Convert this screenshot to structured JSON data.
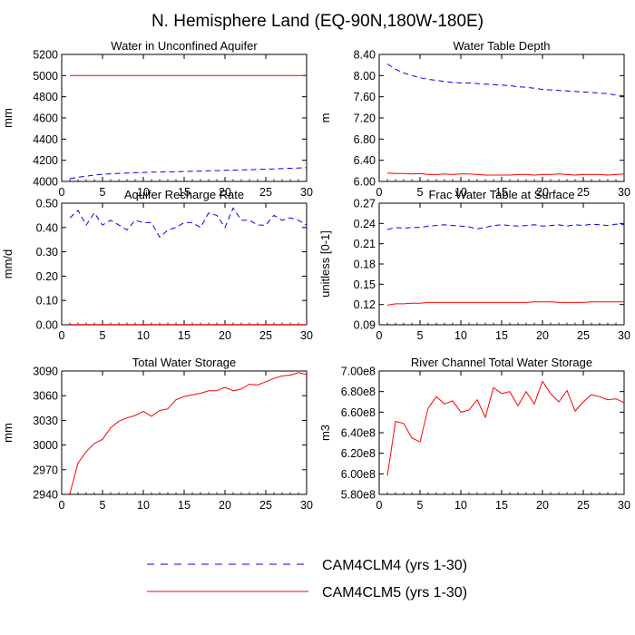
{
  "figure_title": "N. Hemisphere Land (EQ-90N,180W-180E)",
  "colors": {
    "cam4clm4": "#0000ff",
    "cam4clm5": "#ff0000",
    "axis": "#000000"
  },
  "legend": [
    {
      "label": "CAM4CLM4 (yrs 1-30)",
      "color": "#0000ff",
      "dash": "dashed"
    },
    {
      "label": "CAM4CLM5 (yrs 1-30)",
      "color": "#ff0000",
      "dash": "solid"
    }
  ],
  "chart_data": [
    {
      "type": "line",
      "title": "Water in Unconfined Aquifer",
      "xlabel": "",
      "ylabel": "mm",
      "xlim": [
        0,
        30
      ],
      "ylim": [
        4000,
        5200
      ],
      "xticks": [
        "0",
        "5",
        "10",
        "15",
        "20",
        "25",
        "30"
      ],
      "yticks": [
        "4000",
        "4200",
        "4400",
        "4600",
        "4800",
        "5000",
        "5200"
      ],
      "series": [
        {
          "key": "cam4clm4",
          "x": [
            1,
            2,
            3,
            4,
            5,
            6,
            7,
            8,
            9,
            10,
            11,
            12,
            13,
            14,
            15,
            16,
            17,
            18,
            19,
            20,
            21,
            22,
            23,
            24,
            25,
            26,
            27,
            28,
            29,
            30
          ],
          "values": [
            4025,
            4040,
            4050,
            4060,
            4068,
            4072,
            4076,
            4080,
            4083,
            4085,
            4087,
            4088,
            4090,
            4092,
            4094,
            4096,
            4098,
            4100,
            4102,
            4105,
            4107,
            4109,
            4111,
            4113,
            4116,
            4118,
            4121,
            4124,
            4127,
            4130
          ]
        },
        {
          "key": "cam4clm5",
          "x": [
            1,
            2,
            3,
            4,
            5,
            6,
            7,
            8,
            9,
            10,
            11,
            12,
            13,
            14,
            15,
            16,
            17,
            18,
            19,
            20,
            21,
            22,
            23,
            24,
            25,
            26,
            27,
            28,
            29,
            30
          ],
          "values": [
            5000,
            5000,
            5000,
            5000,
            5000,
            5000,
            5000,
            5000,
            5000,
            5000,
            5000,
            5000,
            5000,
            5000,
            5000,
            5000,
            5000,
            5000,
            5000,
            5000,
            5000,
            5000,
            5000,
            5000,
            5000,
            5000,
            5000,
            5000,
            5000,
            5000
          ]
        }
      ]
    },
    {
      "type": "line",
      "title": "Water Table Depth",
      "xlabel": "",
      "ylabel": "m",
      "xlim": [
        0,
        30
      ],
      "ylim": [
        6.0,
        8.4
      ],
      "xticks": [
        "0",
        "5",
        "10",
        "15",
        "20",
        "25",
        "30"
      ],
      "yticks": [
        "6.00",
        "6.40",
        "6.80",
        "7.20",
        "7.60",
        "8.00",
        "8.40"
      ],
      "series": [
        {
          "key": "cam4clm4",
          "x": [
            1,
            2,
            3,
            4,
            5,
            6,
            7,
            8,
            9,
            10,
            11,
            12,
            13,
            14,
            15,
            16,
            17,
            18,
            19,
            20,
            21,
            22,
            23,
            24,
            25,
            26,
            27,
            28,
            29,
            30
          ],
          "values": [
            8.22,
            8.12,
            8.05,
            8.0,
            7.96,
            7.93,
            7.91,
            7.89,
            7.87,
            7.86,
            7.86,
            7.85,
            7.84,
            7.83,
            7.82,
            7.81,
            7.79,
            7.78,
            7.76,
            7.74,
            7.73,
            7.72,
            7.71,
            7.7,
            7.69,
            7.68,
            7.67,
            7.66,
            7.63,
            7.62
          ]
        },
        {
          "key": "cam4clm5",
          "x": [
            1,
            2,
            3,
            4,
            5,
            6,
            7,
            8,
            9,
            10,
            11,
            12,
            13,
            14,
            15,
            16,
            17,
            18,
            19,
            20,
            21,
            22,
            23,
            24,
            25,
            26,
            27,
            28,
            29,
            30
          ],
          "values": [
            6.16,
            6.15,
            6.15,
            6.14,
            6.15,
            6.13,
            6.13,
            6.14,
            6.13,
            6.14,
            6.14,
            6.13,
            6.12,
            6.12,
            6.12,
            6.12,
            6.13,
            6.13,
            6.12,
            6.13,
            6.13,
            6.14,
            6.13,
            6.12,
            6.13,
            6.13,
            6.13,
            6.12,
            6.13,
            6.14
          ]
        }
      ]
    },
    {
      "type": "line",
      "title": "Aquifer Recharge Rate",
      "xlabel": "",
      "ylabel": "mm/d",
      "xlim": [
        0,
        30
      ],
      "ylim": [
        0.0,
        0.5
      ],
      "xticks": [
        "0",
        "5",
        "10",
        "15",
        "20",
        "25",
        "30"
      ],
      "yticks": [
        "0.00",
        "0.10",
        "0.20",
        "0.30",
        "0.40",
        "0.50"
      ],
      "series": [
        {
          "key": "cam4clm4",
          "x": [
            1,
            2,
            3,
            4,
            5,
            6,
            7,
            8,
            9,
            10,
            11,
            12,
            13,
            14,
            15,
            16,
            17,
            18,
            19,
            20,
            21,
            22,
            23,
            24,
            25,
            26,
            27,
            28,
            29,
            30
          ],
          "values": [
            0.44,
            0.47,
            0.41,
            0.46,
            0.41,
            0.43,
            0.41,
            0.39,
            0.43,
            0.42,
            0.42,
            0.36,
            0.39,
            0.4,
            0.42,
            0.42,
            0.4,
            0.46,
            0.45,
            0.4,
            0.48,
            0.43,
            0.43,
            0.41,
            0.41,
            0.45,
            0.43,
            0.44,
            0.43,
            0.41
          ]
        },
        {
          "key": "cam4clm5",
          "x": [
            1,
            2,
            3,
            4,
            5,
            6,
            7,
            8,
            9,
            10,
            11,
            12,
            13,
            14,
            15,
            16,
            17,
            18,
            19,
            20,
            21,
            22,
            23,
            24,
            25,
            26,
            27,
            28,
            29,
            30
          ],
          "values": [
            0.001,
            0.001,
            0.001,
            0.001,
            0.001,
            0.001,
            0.001,
            0.001,
            0.001,
            0.001,
            0.001,
            0.001,
            0.001,
            0.001,
            0.001,
            0.001,
            0.001,
            0.001,
            0.001,
            0.001,
            0.001,
            0.001,
            0.001,
            0.001,
            0.001,
            0.001,
            0.001,
            0.001,
            0.001,
            0.001
          ]
        }
      ]
    },
    {
      "type": "line",
      "title": "Frac Water Table at Surface",
      "xlabel": "",
      "ylabel": "unitless [0-1]",
      "xlim": [
        0,
        30
      ],
      "ylim": [
        0.09,
        0.27
      ],
      "xticks": [
        "0",
        "5",
        "10",
        "15",
        "20",
        "25",
        "30"
      ],
      "yticks": [
        "0.09",
        "0.12",
        "0.15",
        "0.18",
        "0.21",
        "0.24",
        "0.27"
      ],
      "series": [
        {
          "key": "cam4clm4",
          "x": [
            1,
            2,
            3,
            4,
            5,
            6,
            7,
            8,
            9,
            10,
            11,
            12,
            13,
            14,
            15,
            16,
            17,
            18,
            19,
            20,
            21,
            22,
            23,
            24,
            25,
            26,
            27,
            28,
            29,
            30
          ],
          "values": [
            0.231,
            0.234,
            0.233,
            0.234,
            0.234,
            0.236,
            0.237,
            0.238,
            0.237,
            0.236,
            0.235,
            0.232,
            0.234,
            0.237,
            0.238,
            0.237,
            0.236,
            0.237,
            0.238,
            0.236,
            0.237,
            0.238,
            0.236,
            0.238,
            0.237,
            0.239,
            0.238,
            0.237,
            0.239,
            0.238
          ]
        },
        {
          "key": "cam4clm5",
          "x": [
            1,
            2,
            3,
            4,
            5,
            6,
            7,
            8,
            9,
            10,
            11,
            12,
            13,
            14,
            15,
            16,
            17,
            18,
            19,
            20,
            21,
            22,
            23,
            24,
            25,
            26,
            27,
            28,
            29,
            30
          ],
          "values": [
            0.119,
            0.121,
            0.121,
            0.122,
            0.122,
            0.123,
            0.123,
            0.123,
            0.123,
            0.123,
            0.123,
            0.123,
            0.123,
            0.123,
            0.123,
            0.123,
            0.123,
            0.123,
            0.124,
            0.124,
            0.124,
            0.123,
            0.123,
            0.123,
            0.123,
            0.124,
            0.124,
            0.124,
            0.124,
            0.124
          ]
        }
      ]
    },
    {
      "type": "line",
      "title": "Total Water Storage",
      "xlabel": "",
      "ylabel": "mm",
      "xlim": [
        0,
        30
      ],
      "ylim": [
        2940,
        3090
      ],
      "xticks": [
        "0",
        "5",
        "10",
        "15",
        "20",
        "25",
        "30"
      ],
      "yticks": [
        "2940",
        "2970",
        "3000",
        "3030",
        "3060",
        "3090"
      ],
      "series": [
        {
          "key": "cam4clm5",
          "x": [
            1,
            2,
            3,
            4,
            5,
            6,
            7,
            8,
            9,
            10,
            11,
            12,
            13,
            14,
            15,
            16,
            17,
            18,
            19,
            20,
            21,
            22,
            23,
            24,
            25,
            26,
            27,
            28,
            29,
            30
          ],
          "values": [
            2941,
            2978,
            2992,
            3002,
            3007,
            3021,
            3029,
            3033,
            3036,
            3041,
            3035,
            3042,
            3044,
            3055,
            3059,
            3061,
            3063,
            3066,
            3066,
            3070,
            3066,
            3068,
            3074,
            3073,
            3077,
            3081,
            3084,
            3085,
            3088,
            3086
          ]
        }
      ]
    },
    {
      "type": "line",
      "title": "River Channel Total Water Storage",
      "xlabel": "",
      "ylabel": "m3",
      "xlim": [
        0,
        30
      ],
      "ylim": [
        580000000.0,
        700000000.0
      ],
      "xticks": [
        "0",
        "5",
        "10",
        "15",
        "20",
        "25",
        "30"
      ],
      "yticks": [
        "5.80e8",
        "6.00e8",
        "6.20e8",
        "6.40e8",
        "6.60e8",
        "6.80e8",
        "7.00e8"
      ],
      "series": [
        {
          "key": "cam4clm5",
          "x": [
            1,
            2,
            3,
            4,
            5,
            6,
            7,
            8,
            9,
            10,
            11,
            12,
            13,
            14,
            15,
            16,
            17,
            18,
            19,
            20,
            21,
            22,
            23,
            24,
            25,
            26,
            27,
            28,
            29,
            30
          ],
          "values": [
            598000000.0,
            651000000.0,
            649000000.0,
            635000000.0,
            631000000.0,
            664000000.0,
            675000000.0,
            668000000.0,
            671000000.0,
            660000000.0,
            662000000.0,
            672000000.0,
            655000000.0,
            684000000.0,
            678000000.0,
            680000000.0,
            666000000.0,
            680000000.0,
            668000000.0,
            690000000.0,
            678000000.0,
            670000000.0,
            681000000.0,
            661000000.0,
            670000000.0,
            677000000.0,
            675000000.0,
            672000000.0,
            673000000.0,
            669000000.0
          ]
        }
      ]
    }
  ]
}
